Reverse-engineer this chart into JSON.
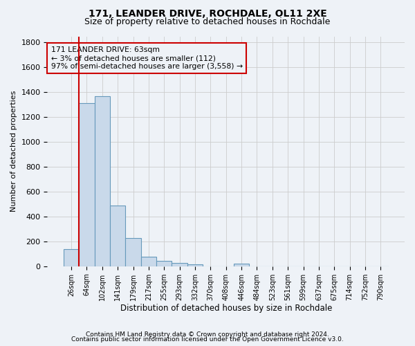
{
  "title1": "171, LEANDER DRIVE, ROCHDALE, OL11 2XE",
  "title2": "Size of property relative to detached houses in Rochdale",
  "xlabel": "Distribution of detached houses by size in Rochdale",
  "ylabel": "Number of detached properties",
  "categories": [
    "26sqm",
    "64sqm",
    "102sqm",
    "141sqm",
    "179sqm",
    "217sqm",
    "255sqm",
    "293sqm",
    "332sqm",
    "370sqm",
    "408sqm",
    "446sqm",
    "484sqm",
    "523sqm",
    "561sqm",
    "599sqm",
    "637sqm",
    "675sqm",
    "714sqm",
    "752sqm",
    "790sqm"
  ],
  "values": [
    140,
    1310,
    1370,
    490,
    225,
    75,
    42,
    28,
    15,
    0,
    0,
    20,
    0,
    0,
    0,
    0,
    0,
    0,
    0,
    0,
    0
  ],
  "bar_color": "#c9d9ea",
  "bar_edge_color": "#6699bb",
  "grid_color": "#cccccc",
  "background_color": "#eef2f7",
  "vline_color": "#cc0000",
  "vline_position": 0.5,
  "annotation_text": "171 LEANDER DRIVE: 63sqm\n← 3% of detached houses are smaller (112)\n97% of semi-detached houses are larger (3,558) →",
  "annotation_box_color": "#cc0000",
  "ylim": [
    0,
    1850
  ],
  "yticks": [
    0,
    200,
    400,
    600,
    800,
    1000,
    1200,
    1400,
    1600,
    1800
  ],
  "footer1": "Contains HM Land Registry data © Crown copyright and database right 2024.",
  "footer2": "Contains public sector information licensed under the Open Government Licence v3.0."
}
